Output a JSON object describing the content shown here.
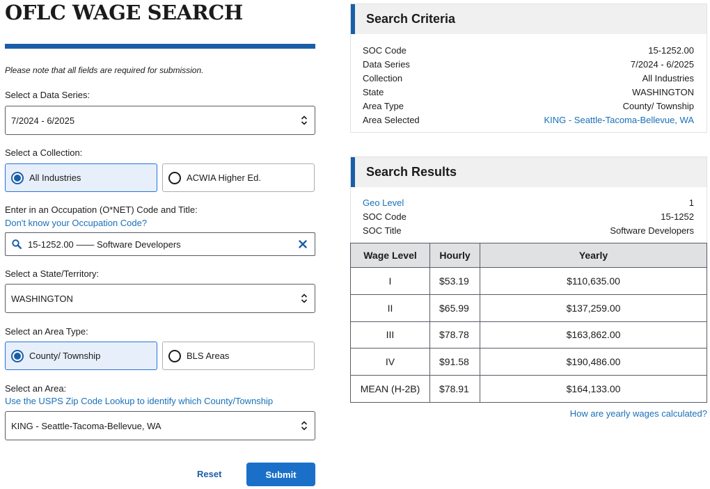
{
  "form": {
    "title": "OFLC WAGE SEARCH",
    "note": "Please note that all fields are required for submission.",
    "data_series": {
      "label": "Select a Data Series:",
      "value": "7/2024 - 6/2025"
    },
    "collection": {
      "label": "Select a Collection:",
      "options": [
        {
          "label": "All Industries",
          "selected": true
        },
        {
          "label": "ACWIA Higher Ed.",
          "selected": false
        }
      ]
    },
    "occupation": {
      "label": "Enter in an Occupation (O*NET) Code and Title:",
      "help_link": "Don't know your Occupation Code?",
      "value": "15-1252.00 —— Software Developers"
    },
    "state": {
      "label": "Select a State/Territory:",
      "value": "WASHINGTON"
    },
    "area_type": {
      "label": "Select an Area Type:",
      "options": [
        {
          "label": "County/ Township",
          "selected": true
        },
        {
          "label": "BLS Areas",
          "selected": false
        }
      ]
    },
    "area": {
      "label": "Select an Area:",
      "help_link": "Use the USPS Zip Code Lookup to identify which County/Township",
      "value": "KING - Seattle-Tacoma-Bellevue, WA"
    },
    "reset_label": "Reset",
    "submit_label": "Submit"
  },
  "criteria": {
    "title": "Search Criteria",
    "rows": [
      {
        "key": "SOC Code",
        "value": "15-1252.00"
      },
      {
        "key": "Data Series",
        "value": "7/2024 - 6/2025"
      },
      {
        "key": "Collection",
        "value": "All Industries"
      },
      {
        "key": "State",
        "value": "WASHINGTON"
      },
      {
        "key": "Area Type",
        "value": "County/ Township"
      },
      {
        "key": "Area Selected",
        "value": "KING - Seattle-Tacoma-Bellevue, WA"
      }
    ]
  },
  "results": {
    "title": "Search Results",
    "geo_level_label": "Geo Level",
    "geo_level_value": "1",
    "soc_code_label": "SOC Code",
    "soc_code_value": "15-1252",
    "soc_title_label": "SOC Title",
    "soc_title_value": "Software Developers",
    "table": {
      "headers": [
        "Wage Level",
        "Hourly",
        "Yearly"
      ],
      "rows": [
        [
          "I",
          "$53.19",
          "$110,635.00"
        ],
        [
          "II",
          "$65.99",
          "$137,259.00"
        ],
        [
          "III",
          "$78.78",
          "$163,862.00"
        ],
        [
          "IV",
          "$91.58",
          "$190,486.00"
        ],
        [
          "MEAN (H-2B)",
          "$78.91",
          "$164,133.00"
        ]
      ]
    },
    "yearly_link": "How are yearly wages calculated?"
  },
  "colors": {
    "accent": "#1a5ea8",
    "link": "#1a70b8",
    "selected_bg": "#e7effa",
    "submit_bg": "#1a70c8",
    "table_header_bg": "#dfe1e2",
    "panel_header_bg": "#f0f0f0"
  },
  "icons": {
    "select_arrows": "chevron-up-down-icon",
    "search": "search-icon",
    "clear": "close-icon"
  }
}
